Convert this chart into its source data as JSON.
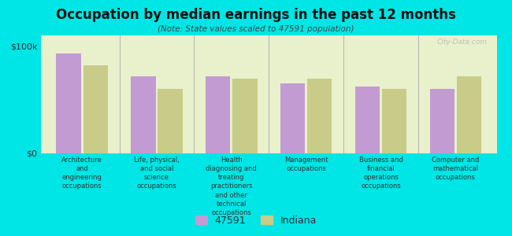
{
  "title": "Occupation by median earnings in the past 12 months",
  "subtitle": "(Note: State values scaled to 47591 population)",
  "background_color": "#00e5e5",
  "plot_bg_color": "#e8f0cc",
  "categories": [
    "Architecture\nand\nengineering\noccupations",
    "Life, physical,\nand social\nscience\noccupations",
    "Health\ndiagnosing and\ntreating\npractitioners\nand other\ntechnical\noccupations",
    "Management\noccupations",
    "Business and\nfinancial\noperations\noccupations",
    "Computer and\nmathematical\noccupations"
  ],
  "values_47591": [
    93000,
    72000,
    72000,
    65000,
    62000,
    60000
  ],
  "values_indiana": [
    82000,
    60000,
    70000,
    70000,
    60000,
    72000
  ],
  "color_47591": "#c39bd3",
  "color_indiana": "#c8cc88",
  "ylim": [
    0,
    110000
  ],
  "yticks": [
    0,
    100000
  ],
  "ytick_labels": [
    "$0",
    "$100k"
  ],
  "legend_label_1": "47591",
  "legend_label_2": "Indiana",
  "watermark": "City-Data.com"
}
